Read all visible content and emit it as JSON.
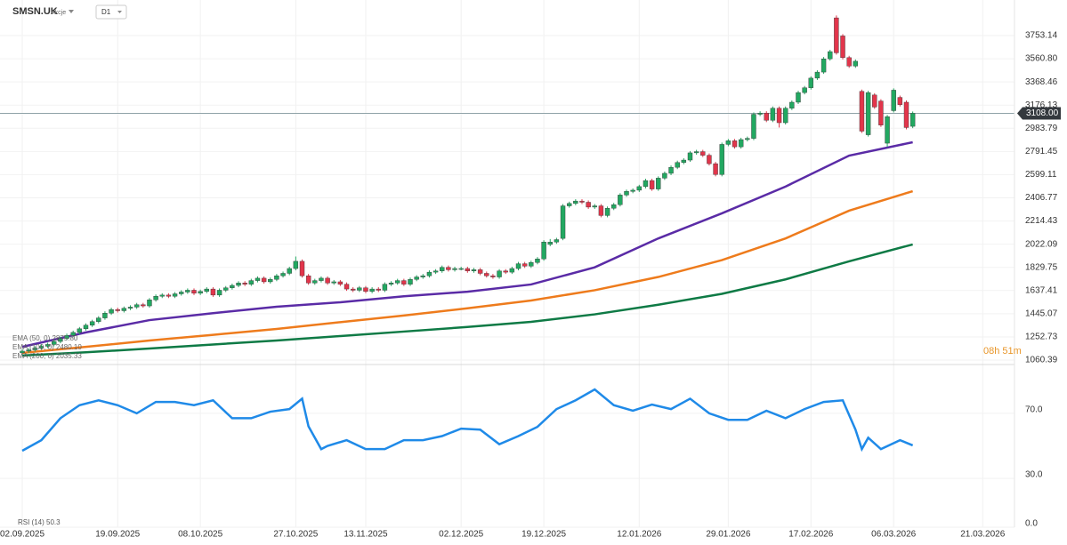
{
  "chart_data": {
    "type": "candlestick",
    "symbol": "SMSN.UK",
    "instrument_type": "Akcje",
    "timeframe": "D1",
    "up_color": "#22a861",
    "down_color": "#e2354b",
    "xlim": [
      -3.5,
      156
    ],
    "xticks": [
      {
        "value": 0,
        "label": "02.09.2025"
      },
      {
        "value": 15,
        "label": "19.09.2025"
      },
      {
        "value": 28,
        "label": "08.10.2025"
      },
      {
        "value": 43,
        "label": "27.10.2025"
      },
      {
        "value": 54,
        "label": "13.11.2025"
      },
      {
        "value": 69,
        "label": "02.12.2025"
      },
      {
        "value": 82,
        "label": "19.12.2025"
      },
      {
        "value": 97,
        "label": "12.01.2026"
      },
      {
        "value": 111,
        "label": "29.01.2026"
      },
      {
        "value": 124,
        "label": "17.02.2026"
      },
      {
        "value": 137,
        "label": "06.03.2026"
      },
      {
        "value": 151,
        "label": "21.03.2026"
      }
    ],
    "ylim": [
      1023.6,
      4048.2
    ],
    "yticks": [
      3753.14,
      {
        "value": 3560.8,
        "label": "3560.80"
      },
      3368.46,
      3176.13,
      2983.79,
      2791.45,
      2599.11,
      2406.77,
      2214.43,
      2022.09,
      1829.75,
      1637.41,
      1445.07,
      1252.73,
      1060.39
    ],
    "last_price": {
      "value": 3108,
      "label": "3108.00"
    },
    "timer": "08h 51m",
    "candles": [
      [
        1120,
        1150,
        1105,
        1135
      ],
      [
        1135,
        1160,
        1120,
        1145
      ],
      [
        1145,
        1175,
        1130,
        1160
      ],
      [
        1160,
        1190,
        1145,
        1175
      ],
      [
        1175,
        1205,
        1160,
        1190
      ],
      [
        1190,
        1230,
        1175,
        1215
      ],
      [
        1215,
        1255,
        1200,
        1240
      ],
      [
        1240,
        1280,
        1225,
        1265
      ],
      [
        1265,
        1305,
        1250,
        1290
      ],
      [
        1290,
        1335,
        1275,
        1320
      ],
      [
        1320,
        1365,
        1305,
        1350
      ],
      [
        1350,
        1395,
        1335,
        1380
      ],
      [
        1380,
        1425,
        1365,
        1410
      ],
      [
        1410,
        1465,
        1395,
        1450
      ],
      [
        1450,
        1495,
        1435,
        1480
      ],
      [
        1480,
        1495,
        1455,
        1470
      ],
      [
        1470,
        1505,
        1455,
        1490
      ],
      [
        1490,
        1515,
        1475,
        1500
      ],
      [
        1500,
        1535,
        1485,
        1520
      ],
      [
        1520,
        1535,
        1495,
        1510
      ],
      [
        1510,
        1575,
        1495,
        1560
      ],
      [
        1560,
        1605,
        1545,
        1590
      ],
      [
        1590,
        1615,
        1575,
        1600
      ],
      [
        1600,
        1615,
        1575,
        1590
      ],
      [
        1590,
        1625,
        1575,
        1610
      ],
      [
        1610,
        1640,
        1595,
        1625
      ],
      [
        1625,
        1655,
        1610,
        1640
      ],
      [
        1640,
        1655,
        1600,
        1615
      ],
      [
        1615,
        1645,
        1600,
        1630
      ],
      [
        1630,
        1665,
        1615,
        1650
      ],
      [
        1650,
        1665,
        1585,
        1600
      ],
      [
        1600,
        1655,
        1585,
        1640
      ],
      [
        1640,
        1675,
        1625,
        1660
      ],
      [
        1660,
        1695,
        1645,
        1680
      ],
      [
        1680,
        1715,
        1665,
        1700
      ],
      [
        1700,
        1715,
        1675,
        1690
      ],
      [
        1690,
        1735,
        1675,
        1720
      ],
      [
        1720,
        1755,
        1705,
        1740
      ],
      [
        1740,
        1755,
        1695,
        1710
      ],
      [
        1710,
        1745,
        1695,
        1730
      ],
      [
        1730,
        1775,
        1715,
        1760
      ],
      [
        1760,
        1795,
        1745,
        1780
      ],
      [
        1780,
        1835,
        1765,
        1820
      ],
      [
        1820,
        1920,
        1805,
        1880
      ],
      [
        1880,
        1895,
        1745,
        1760
      ],
      [
        1760,
        1775,
        1685,
        1700
      ],
      [
        1700,
        1735,
        1685,
        1720
      ],
      [
        1720,
        1755,
        1705,
        1740
      ],
      [
        1740,
        1755,
        1685,
        1700
      ],
      [
        1700,
        1725,
        1685,
        1710
      ],
      [
        1710,
        1725,
        1675,
        1690
      ],
      [
        1690,
        1705,
        1635,
        1650
      ],
      [
        1650,
        1665,
        1625,
        1640
      ],
      [
        1640,
        1675,
        1625,
        1660
      ],
      [
        1660,
        1675,
        1615,
        1630
      ],
      [
        1630,
        1665,
        1615,
        1650
      ],
      [
        1650,
        1665,
        1625,
        1640
      ],
      [
        1640,
        1705,
        1625,
        1690
      ],
      [
        1690,
        1715,
        1675,
        1700
      ],
      [
        1700,
        1735,
        1685,
        1720
      ],
      [
        1720,
        1735,
        1675,
        1690
      ],
      [
        1690,
        1745,
        1675,
        1730
      ],
      [
        1730,
        1765,
        1715,
        1750
      ],
      [
        1750,
        1775,
        1735,
        1760
      ],
      [
        1760,
        1805,
        1745,
        1790
      ],
      [
        1790,
        1815,
        1775,
        1800
      ],
      [
        1800,
        1845,
        1785,
        1830
      ],
      [
        1830,
        1845,
        1795,
        1810
      ],
      [
        1810,
        1835,
        1795,
        1820
      ],
      [
        1820,
        1835,
        1805,
        1820
      ],
      [
        1820,
        1835,
        1785,
        1800
      ],
      [
        1800,
        1825,
        1785,
        1810
      ],
      [
        1810,
        1825,
        1765,
        1780
      ],
      [
        1780,
        1795,
        1745,
        1760
      ],
      [
        1760,
        1775,
        1735,
        1750
      ],
      [
        1750,
        1815,
        1735,
        1800
      ],
      [
        1800,
        1815,
        1775,
        1790
      ],
      [
        1790,
        1835,
        1775,
        1820
      ],
      [
        1820,
        1875,
        1805,
        1860
      ],
      [
        1860,
        1875,
        1825,
        1840
      ],
      [
        1840,
        1885,
        1825,
        1870
      ],
      [
        1870,
        1915,
        1855,
        1900
      ],
      [
        1900,
        2055,
        1885,
        2040
      ],
      [
        2020,
        2065,
        2005,
        2040
      ],
      [
        2040,
        2075,
        2025,
        2060
      ],
      [
        2070,
        2355,
        2055,
        2340
      ],
      [
        2340,
        2375,
        2325,
        2360
      ],
      [
        2360,
        2395,
        2345,
        2380
      ],
      [
        2380,
        2395,
        2355,
        2370
      ],
      [
        2370,
        2385,
        2315,
        2330
      ],
      [
        2330,
        2355,
        2315,
        2340
      ],
      [
        2340,
        2355,
        2245,
        2260
      ],
      [
        2260,
        2335,
        2245,
        2320
      ],
      [
        2320,
        2365,
        2305,
        2350
      ],
      [
        2350,
        2445,
        2335,
        2430
      ],
      [
        2430,
        2475,
        2415,
        2460
      ],
      [
        2460,
        2485,
        2445,
        2470
      ],
      [
        2470,
        2515,
        2455,
        2500
      ],
      [
        2500,
        2565,
        2485,
        2550
      ],
      [
        2550,
        2565,
        2465,
        2480
      ],
      [
        2480,
        2585,
        2465,
        2570
      ],
      [
        2570,
        2625,
        2555,
        2610
      ],
      [
        2610,
        2675,
        2595,
        2660
      ],
      [
        2660,
        2715,
        2645,
        2700
      ],
      [
        2700,
        2735,
        2685,
        2720
      ],
      [
        2720,
        2795,
        2705,
        2780
      ],
      [
        2780,
        2805,
        2765,
        2790
      ],
      [
        2790,
        2805,
        2745,
        2760
      ],
      [
        2760,
        2775,
        2675,
        2690
      ],
      [
        2690,
        2705,
        2585,
        2600
      ],
      [
        2600,
        2865,
        2585,
        2850
      ],
      [
        2850,
        2895,
        2835,
        2880
      ],
      [
        2880,
        2895,
        2815,
        2830
      ],
      [
        2830,
        2905,
        2815,
        2890
      ],
      [
        2890,
        2915,
        2875,
        2900
      ],
      [
        2900,
        3115,
        2885,
        3100
      ],
      [
        3100,
        3125,
        3085,
        3110
      ],
      [
        3110,
        3125,
        3035,
        3050
      ],
      [
        3050,
        3165,
        3035,
        3150
      ],
      [
        3150,
        3165,
        2990,
        3030
      ],
      [
        3030,
        3165,
        3015,
        3150
      ],
      [
        3150,
        3215,
        3135,
        3200
      ],
      [
        3200,
        3295,
        3185,
        3280
      ],
      [
        3280,
        3335,
        3265,
        3320
      ],
      [
        3320,
        3415,
        3305,
        3400
      ],
      [
        3400,
        3465,
        3385,
        3450
      ],
      [
        3450,
        3575,
        3435,
        3560
      ],
      [
        3560,
        3635,
        3545,
        3620
      ],
      [
        3900,
        3920,
        3595,
        3610
      ],
      [
        3750,
        3765,
        3555,
        3570
      ],
      [
        3570,
        3585,
        3485,
        3500
      ],
      [
        3500,
        3555,
        3485,
        3540
      ],
      [
        3290,
        3305,
        2945,
        2960
      ],
      [
        2930,
        3295,
        2915,
        3280
      ],
      [
        3260,
        3275,
        3145,
        3160
      ],
      [
        3210,
        3225,
        2995,
        3010
      ],
      [
        2860,
        3095,
        2830,
        3080
      ],
      [
        3130,
        3315,
        3115,
        3300
      ],
      [
        3240,
        3255,
        3165,
        3180
      ],
      [
        3200,
        3215,
        2975,
        2990
      ],
      [
        3000,
        3123,
        2985,
        3108
      ]
    ],
    "series": [
      {
        "name": "EMA (200, 0) 2035.33",
        "color": "#0e7a45",
        "x": [
          0,
          10,
          20,
          30,
          40,
          50,
          60,
          70,
          80,
          90,
          100,
          110,
          120,
          130,
          140
        ],
        "values": [
          1098,
          1125,
          1156,
          1190,
          1223,
          1260,
          1297,
          1335,
          1378,
          1440,
          1520,
          1610,
          1730,
          1880,
          2020
        ]
      },
      {
        "name": "EMA (100, 0) 2480.10",
        "color": "#ee7b1c",
        "x": [
          0,
          10,
          20,
          30,
          40,
          50,
          60,
          70,
          80,
          90,
          100,
          110,
          120,
          130,
          140
        ],
        "values": [
          1120,
          1170,
          1223,
          1270,
          1319,
          1375,
          1430,
          1490,
          1555,
          1640,
          1750,
          1890,
          2070,
          2300,
          2462
        ]
      },
      {
        "name": "EMA (50, 0) 2875.80",
        "color": "#5a2ba6",
        "x": [
          0,
          10,
          20,
          30,
          40,
          50,
          60,
          70,
          80,
          90,
          100,
          110,
          120,
          130,
          140
        ],
        "values": [
          1170,
          1290,
          1392,
          1450,
          1503,
          1540,
          1590,
          1628,
          1688,
          1830,
          2070,
          2278,
          2500,
          2757,
          2868
        ]
      }
    ],
    "rsi": {
      "type": "line",
      "legend": "RSI (14) 50.3",
      "color": "#1f8ae8",
      "ylim": [
        0,
        100
      ],
      "yticks": [
        {
          "value": 70,
          "label": "70.0"
        },
        {
          "value": 30,
          "label": "30.0"
        },
        {
          "value": 0,
          "label": "0.0"
        }
      ],
      "x": [
        0,
        3,
        6,
        9,
        12,
        15,
        18,
        21,
        24,
        27,
        30,
        33,
        36,
        39,
        42,
        44,
        45,
        47,
        48,
        51,
        54,
        57,
        60,
        63,
        66,
        69,
        72,
        75,
        78,
        81,
        84,
        87,
        90,
        93,
        96,
        99,
        102,
        105,
        108,
        111,
        114,
        117,
        120,
        123,
        126,
        129,
        131,
        132,
        133,
        135,
        138,
        140
      ],
      "values": [
        47,
        53.5,
        67,
        75,
        78,
        75,
        70,
        77,
        77,
        75,
        78,
        67,
        67,
        71,
        72.6,
        79,
        62,
        48,
        50,
        53.5,
        48,
        48,
        53.5,
        53.5,
        56,
        60.6,
        60,
        51,
        56,
        61.7,
        72.6,
        78,
        84.7,
        75,
        71.6,
        75.4,
        72.6,
        79,
        70,
        66,
        66,
        71.6,
        67,
        72.6,
        77,
        78,
        60,
        48,
        55,
        48,
        53.5,
        50.3
      ]
    }
  }
}
